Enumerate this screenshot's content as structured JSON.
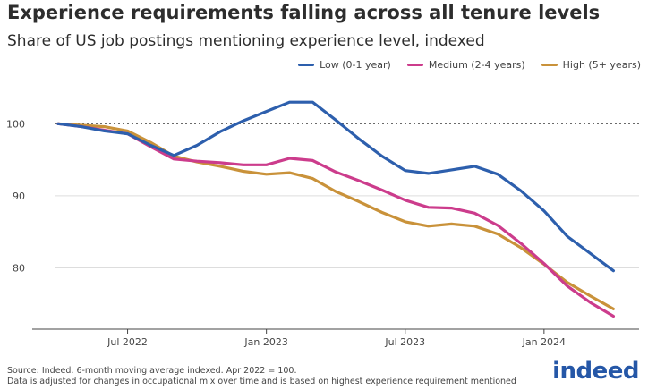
{
  "title": "Experience requirements falling across all tenure levels",
  "subtitle": "Share of US job postings mentioning experience level, indexed",
  "footer": {
    "line1": "Source: Indeed. 6-month moving average indexed. Apr 2022 = 100.",
    "line2": "Data is adjusted for changes in occupational mix over time and is based on highest experience requirement mentioned"
  },
  "logo": "indeed",
  "colors": {
    "low": "#2d5fad",
    "medium": "#cc3c8c",
    "high": "#c9923a",
    "grid": "#dddddd",
    "baseline": "#444444"
  },
  "chart_data": {
    "type": "line",
    "title": "Experience requirements falling across all tenure levels",
    "subtitle": "Share of US job postings mentioning experience level, indexed",
    "xlabel": "",
    "ylabel": "",
    "x": [
      "2022-04",
      "2022-05",
      "2022-06",
      "2022-07",
      "2022-08",
      "2022-09",
      "2022-10",
      "2022-11",
      "2022-12",
      "2023-01",
      "2023-02",
      "2023-03",
      "2023-04",
      "2023-05",
      "2023-06",
      "2023-07",
      "2023-08",
      "2023-09",
      "2023-10",
      "2023-11",
      "2023-12",
      "2024-01",
      "2024-02",
      "2024-03",
      "2024-04"
    ],
    "xticks": [
      {
        "label": "Jul 2022",
        "index": 3
      },
      {
        "label": "Jan 2023",
        "index": 9
      },
      {
        "label": "Jul 2023",
        "index": 15
      },
      {
        "label": "Jan 2024",
        "index": 21
      }
    ],
    "yticks": [
      80,
      90,
      100
    ],
    "ylim": [
      71.5,
      106
    ],
    "reference_line": 100,
    "legend_position": "top-right",
    "series": [
      {
        "name": "Low (0-1 year)",
        "key": "low",
        "values": [
          100,
          99.6,
          99.0,
          98.6,
          97.0,
          95.6,
          97.0,
          98.9,
          100.4,
          101.7,
          103.0,
          103.0,
          100.5,
          97.9,
          95.5,
          93.5,
          93.1,
          93.6,
          94.1,
          93.0,
          90.7,
          87.9,
          84.4,
          82.0,
          79.6
        ]
      },
      {
        "name": "Medium (2-4 years)",
        "key": "medium",
        "values": [
          100,
          99.6,
          99.1,
          98.6,
          96.8,
          95.1,
          94.8,
          94.6,
          94.3,
          94.3,
          95.2,
          94.9,
          93.3,
          92.1,
          90.8,
          89.4,
          88.4,
          88.3,
          87.6,
          85.9,
          83.4,
          80.6,
          77.5,
          75.2,
          73.3
        ]
      },
      {
        "name": "High (5+ years)",
        "key": "high",
        "values": [
          100,
          99.8,
          99.6,
          99.0,
          97.4,
          95.5,
          94.7,
          94.1,
          93.4,
          93.0,
          93.2,
          92.4,
          90.6,
          89.2,
          87.7,
          86.4,
          85.8,
          86.1,
          85.8,
          84.7,
          82.8,
          80.5,
          78.0,
          76.1,
          74.3
        ]
      }
    ]
  }
}
